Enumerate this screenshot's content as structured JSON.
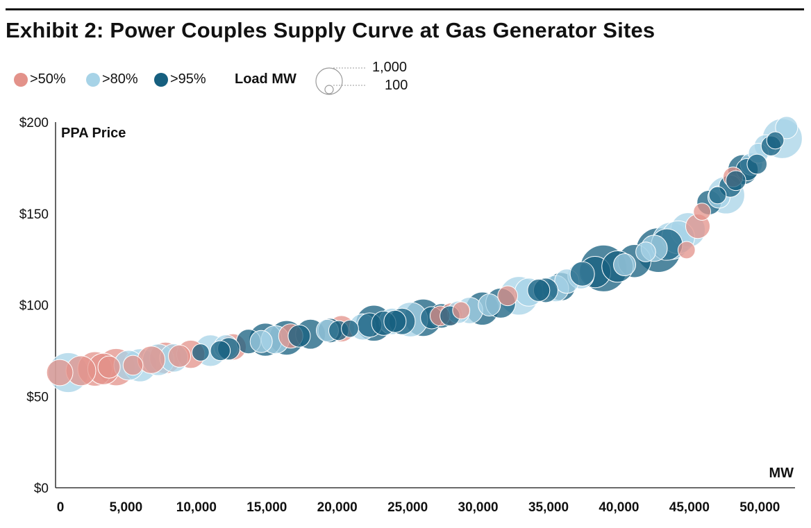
{
  "title": "Exhibit 2: Power Couples Supply Curve at Gas Generator Sites",
  "legend": {
    "categories": [
      {
        "label": ">50%",
        "color": "#e3928a"
      },
      {
        "label": ">80%",
        "color": "#a7d3e7"
      },
      {
        "label": ">95%",
        "color": "#165f7f"
      }
    ],
    "size_title": "Load MW",
    "size_values": [
      "1,000",
      "100"
    ]
  },
  "chart_data": {
    "type": "scatter",
    "title": "Exhibit 2: Power Couples Supply Curve at Gas Generator Sites",
    "xlabel": "MW",
    "ylabel": "PPA Price",
    "xlim": [
      0,
      52500
    ],
    "ylim": [
      0,
      200
    ],
    "x_ticks": [
      "0",
      "5,000",
      "10,000",
      "15,000",
      "20,000",
      "25,000",
      "30,000",
      "35,000",
      "40,000",
      "45,000",
      "50,000"
    ],
    "y_ticks": [
      "$0",
      "$50",
      "$100",
      "$150",
      "$200"
    ],
    "x_tick_values": [
      0,
      5000,
      10000,
      15000,
      20000,
      25000,
      30000,
      35000,
      40000,
      45000,
      50000
    ],
    "y_tick_values": [
      0,
      50,
      100,
      150,
      200
    ],
    "grid": false,
    "legend_position": "top-left",
    "size_encoding": "Load MW",
    "series": [
      {
        "name": ">50%",
        "color": "#e3928a",
        "points": [
          {
            "x": 300,
            "y": 63,
            "size": 350
          },
          {
            "x": 1800,
            "y": 64,
            "size": 450
          },
          {
            "x": 2800,
            "y": 65,
            "size": 600
          },
          {
            "x": 3400,
            "y": 65,
            "size": 500
          },
          {
            "x": 3800,
            "y": 66,
            "size": 250
          },
          {
            "x": 4300,
            "y": 66,
            "size": 700
          },
          {
            "x": 5500,
            "y": 67,
            "size": 200
          },
          {
            "x": 6800,
            "y": 70,
            "size": 380
          },
          {
            "x": 7800,
            "y": 71,
            "size": 500
          },
          {
            "x": 8800,
            "y": 72,
            "size": 250
          },
          {
            "x": 9600,
            "y": 73,
            "size": 400
          },
          {
            "x": 12600,
            "y": 77,
            "size": 350
          },
          {
            "x": 16700,
            "y": 83,
            "size": 300
          },
          {
            "x": 20300,
            "y": 87,
            "size": 350
          },
          {
            "x": 27300,
            "y": 94,
            "size": 200
          },
          {
            "x": 28100,
            "y": 95,
            "size": 250
          },
          {
            "x": 28800,
            "y": 97,
            "size": 150
          },
          {
            "x": 32100,
            "y": 105,
            "size": 200
          },
          {
            "x": 44800,
            "y": 130,
            "size": 150
          },
          {
            "x": 45600,
            "y": 143,
            "size": 300
          },
          {
            "x": 45900,
            "y": 151,
            "size": 150
          },
          {
            "x": 48100,
            "y": 170,
            "size": 200
          }
        ]
      },
      {
        "name": ">80%",
        "color": "#a7d3e7",
        "points": [
          {
            "x": 900,
            "y": 63,
            "size": 800
          },
          {
            "x": 5200,
            "y": 67,
            "size": 450
          },
          {
            "x": 6000,
            "y": 67,
            "size": 550
          },
          {
            "x": 7300,
            "y": 70,
            "size": 500
          },
          {
            "x": 8400,
            "y": 71,
            "size": 400
          },
          {
            "x": 11000,
            "y": 75,
            "size": 500
          },
          {
            "x": 12100,
            "y": 77,
            "size": 300
          },
          {
            "x": 14600,
            "y": 80,
            "size": 250
          },
          {
            "x": 15600,
            "y": 81,
            "size": 400
          },
          {
            "x": 19300,
            "y": 86,
            "size": 250
          },
          {
            "x": 21800,
            "y": 88,
            "size": 350
          },
          {
            "x": 23900,
            "y": 91,
            "size": 350
          },
          {
            "x": 25200,
            "y": 92,
            "size": 600
          },
          {
            "x": 28600,
            "y": 96,
            "size": 250
          },
          {
            "x": 29400,
            "y": 97,
            "size": 350
          },
          {
            "x": 30800,
            "y": 100,
            "size": 250
          },
          {
            "x": 32900,
            "y": 105,
            "size": 750
          },
          {
            "x": 33600,
            "y": 107,
            "size": 400
          },
          {
            "x": 35500,
            "y": 109,
            "size": 350
          },
          {
            "x": 36300,
            "y": 113,
            "size": 300
          },
          {
            "x": 37300,
            "y": 116,
            "size": 350
          },
          {
            "x": 40400,
            "y": 122,
            "size": 250
          },
          {
            "x": 41900,
            "y": 129,
            "size": 200
          },
          {
            "x": 42500,
            "y": 131,
            "size": 350
          },
          {
            "x": 43700,
            "y": 135,
            "size": 700
          },
          {
            "x": 44200,
            "y": 137,
            "size": 550
          },
          {
            "x": 44900,
            "y": 141,
            "size": 600
          },
          {
            "x": 47100,
            "y": 159,
            "size": 250
          },
          {
            "x": 47600,
            "y": 160,
            "size": 700
          },
          {
            "x": 49400,
            "y": 177,
            "size": 250
          },
          {
            "x": 49900,
            "y": 183,
            "size": 200
          },
          {
            "x": 50400,
            "y": 187,
            "size": 250
          },
          {
            "x": 51600,
            "y": 191,
            "size": 800
          },
          {
            "x": 51900,
            "y": 197,
            "size": 250
          }
        ]
      },
      {
        "name": ">95%",
        "color": "#165f7f",
        "points": [
          {
            "x": 10300,
            "y": 74,
            "size": 150
          },
          {
            "x": 11700,
            "y": 75,
            "size": 200
          },
          {
            "x": 12300,
            "y": 76,
            "size": 250
          },
          {
            "x": 13700,
            "y": 80,
            "size": 300
          },
          {
            "x": 14900,
            "y": 81,
            "size": 550
          },
          {
            "x": 16400,
            "y": 82,
            "size": 600
          },
          {
            "x": 17300,
            "y": 83,
            "size": 250
          },
          {
            "x": 18100,
            "y": 84,
            "size": 450
          },
          {
            "x": 19500,
            "y": 86,
            "size": 300
          },
          {
            "x": 20100,
            "y": 86,
            "size": 200
          },
          {
            "x": 20900,
            "y": 87,
            "size": 150
          },
          {
            "x": 22300,
            "y": 89,
            "size": 300
          },
          {
            "x": 22600,
            "y": 90,
            "size": 650
          },
          {
            "x": 23300,
            "y": 90,
            "size": 300
          },
          {
            "x": 24100,
            "y": 91,
            "size": 250
          },
          {
            "x": 24600,
            "y": 91,
            "size": 350
          },
          {
            "x": 26100,
            "y": 93,
            "size": 700
          },
          {
            "x": 26700,
            "y": 93,
            "size": 250
          },
          {
            "x": 27400,
            "y": 94,
            "size": 300
          },
          {
            "x": 28000,
            "y": 94,
            "size": 200
          },
          {
            "x": 30300,
            "y": 98,
            "size": 550
          },
          {
            "x": 31600,
            "y": 101,
            "size": 450
          },
          {
            "x": 34300,
            "y": 108,
            "size": 250
          },
          {
            "x": 34800,
            "y": 108,
            "size": 300
          },
          {
            "x": 35900,
            "y": 110,
            "size": 400
          },
          {
            "x": 37400,
            "y": 117,
            "size": 300
          },
          {
            "x": 38300,
            "y": 118,
            "size": 500
          },
          {
            "x": 38900,
            "y": 120,
            "size": 1100
          },
          {
            "x": 39900,
            "y": 121,
            "size": 500
          },
          {
            "x": 41100,
            "y": 124,
            "size": 550
          },
          {
            "x": 42800,
            "y": 130,
            "size": 1000
          },
          {
            "x": 43400,
            "y": 133,
            "size": 500
          },
          {
            "x": 46400,
            "y": 156,
            "size": 300
          },
          {
            "x": 47000,
            "y": 160,
            "size": 150
          },
          {
            "x": 47900,
            "y": 165,
            "size": 250
          },
          {
            "x": 48300,
            "y": 168,
            "size": 200
          },
          {
            "x": 48800,
            "y": 174,
            "size": 450
          },
          {
            "x": 49100,
            "y": 174,
            "size": 250
          },
          {
            "x": 49800,
            "y": 177,
            "size": 200
          },
          {
            "x": 50800,
            "y": 187,
            "size": 200
          },
          {
            "x": 51100,
            "y": 190,
            "size": 150
          }
        ]
      }
    ]
  }
}
